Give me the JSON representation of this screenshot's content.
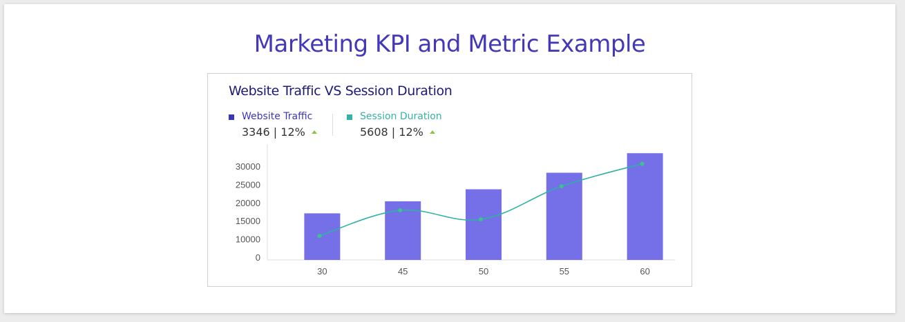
{
  "page_title": "Marketing KPI and Metric Example",
  "colors": {
    "title": "#4338b8",
    "card_title": "#1c1a73",
    "bar": "#7570e8",
    "line": "#2fb1a3",
    "point": "#3cc18f",
    "traffic_swatch": "#3a36b8",
    "session_swatch": "#34b3a4",
    "up_arrow": "#8bc34a"
  },
  "legend": {
    "traffic": {
      "name": "Website Traffic",
      "kpi": "3346 | 12%",
      "trend_icon": "triangle-up-icon"
    },
    "session": {
      "name": "Session Duration",
      "kpi": "5608 | 12%",
      "trend_icon": "triangle-up-icon"
    }
  },
  "chart_data": {
    "type": "bar",
    "title": "Website Traffic VS Session Duration",
    "categories": [
      "30",
      "45",
      "50",
      "55",
      "60"
    ],
    "y_ticks": [
      "0",
      "10000",
      "15000",
      "20000",
      "25000",
      "30000"
    ],
    "series": [
      {
        "name": "Website Traffic",
        "type": "bar",
        "values": [
          15500,
          19500,
          23500,
          29000,
          35500
        ]
      },
      {
        "name": "Session Duration",
        "type": "line",
        "values": [
          8000,
          16500,
          13500,
          24500,
          32000
        ]
      }
    ],
    "ylim": [
      0,
      36000
    ],
    "xlabel": "",
    "ylabel": "",
    "grid": false
  }
}
